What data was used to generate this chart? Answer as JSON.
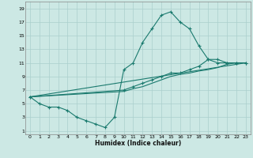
{
  "xlabel": "Humidex (Indice chaleur)",
  "bg_color": "#cce8e4",
  "grid_color": "#aacfcc",
  "line_color": "#1a7a6e",
  "xlim": [
    -0.5,
    23.5
  ],
  "ylim": [
    0.5,
    20
  ],
  "xticks": [
    0,
    1,
    2,
    3,
    4,
    5,
    6,
    7,
    8,
    9,
    10,
    11,
    12,
    13,
    14,
    15,
    16,
    17,
    18,
    19,
    20,
    21,
    22,
    23
  ],
  "yticks": [
    1,
    3,
    5,
    7,
    9,
    11,
    13,
    15,
    17,
    19
  ],
  "line1_x": [
    0,
    1,
    2,
    3,
    4,
    5,
    6,
    7,
    8,
    9,
    10,
    11,
    12,
    13,
    14,
    15,
    16,
    17,
    18,
    19,
    20,
    21,
    22,
    23
  ],
  "line1_y": [
    6,
    5,
    4.5,
    4.5,
    4,
    3,
    2.5,
    2,
    1.5,
    3,
    10,
    11,
    14,
    16,
    18,
    18.5,
    17,
    16,
    13.5,
    11.5,
    11,
    11,
    11,
    11
  ],
  "line2_x": [
    0,
    10,
    11,
    12,
    13,
    14,
    15,
    16,
    17,
    18,
    19,
    20,
    21,
    22,
    23
  ],
  "line2_y": [
    6,
    7,
    7.5,
    8,
    8.5,
    9,
    9.5,
    9.5,
    10,
    10.5,
    11.5,
    11.5,
    11,
    11,
    11
  ],
  "line3_x": [
    0,
    23
  ],
  "line3_y": [
    6,
    11
  ],
  "line4_x": [
    0,
    10,
    11,
    12,
    13,
    14,
    15,
    16,
    17,
    18,
    19,
    20,
    21,
    22,
    23
  ],
  "line4_y": [
    6,
    6.8,
    7.2,
    7.5,
    8,
    8.5,
    9,
    9.3,
    9.5,
    9.8,
    10,
    10.3,
    10.8,
    11,
    11
  ]
}
